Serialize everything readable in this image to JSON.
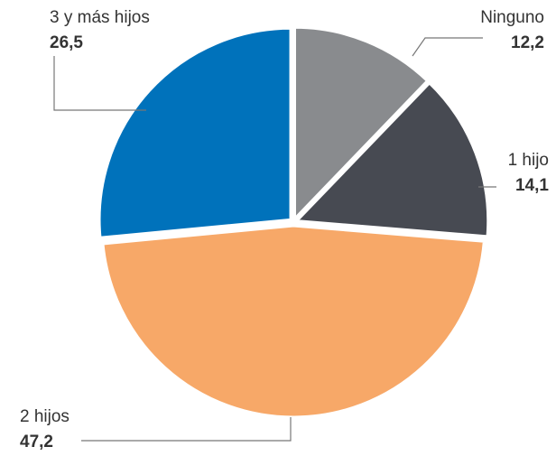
{
  "chart_data": {
    "type": "pie",
    "categories": [
      "Ninguno",
      "1 hijo",
      "2 hijos",
      "3 y más hijos"
    ],
    "values": [
      12.2,
      14.1,
      47.2,
      26.5
    ],
    "value_labels": [
      "12,2",
      "14,1",
      "47,2",
      "26,5"
    ],
    "colors": [
      "#898b8e",
      "#474a52",
      "#f7a868",
      "#0072bb"
    ]
  }
}
